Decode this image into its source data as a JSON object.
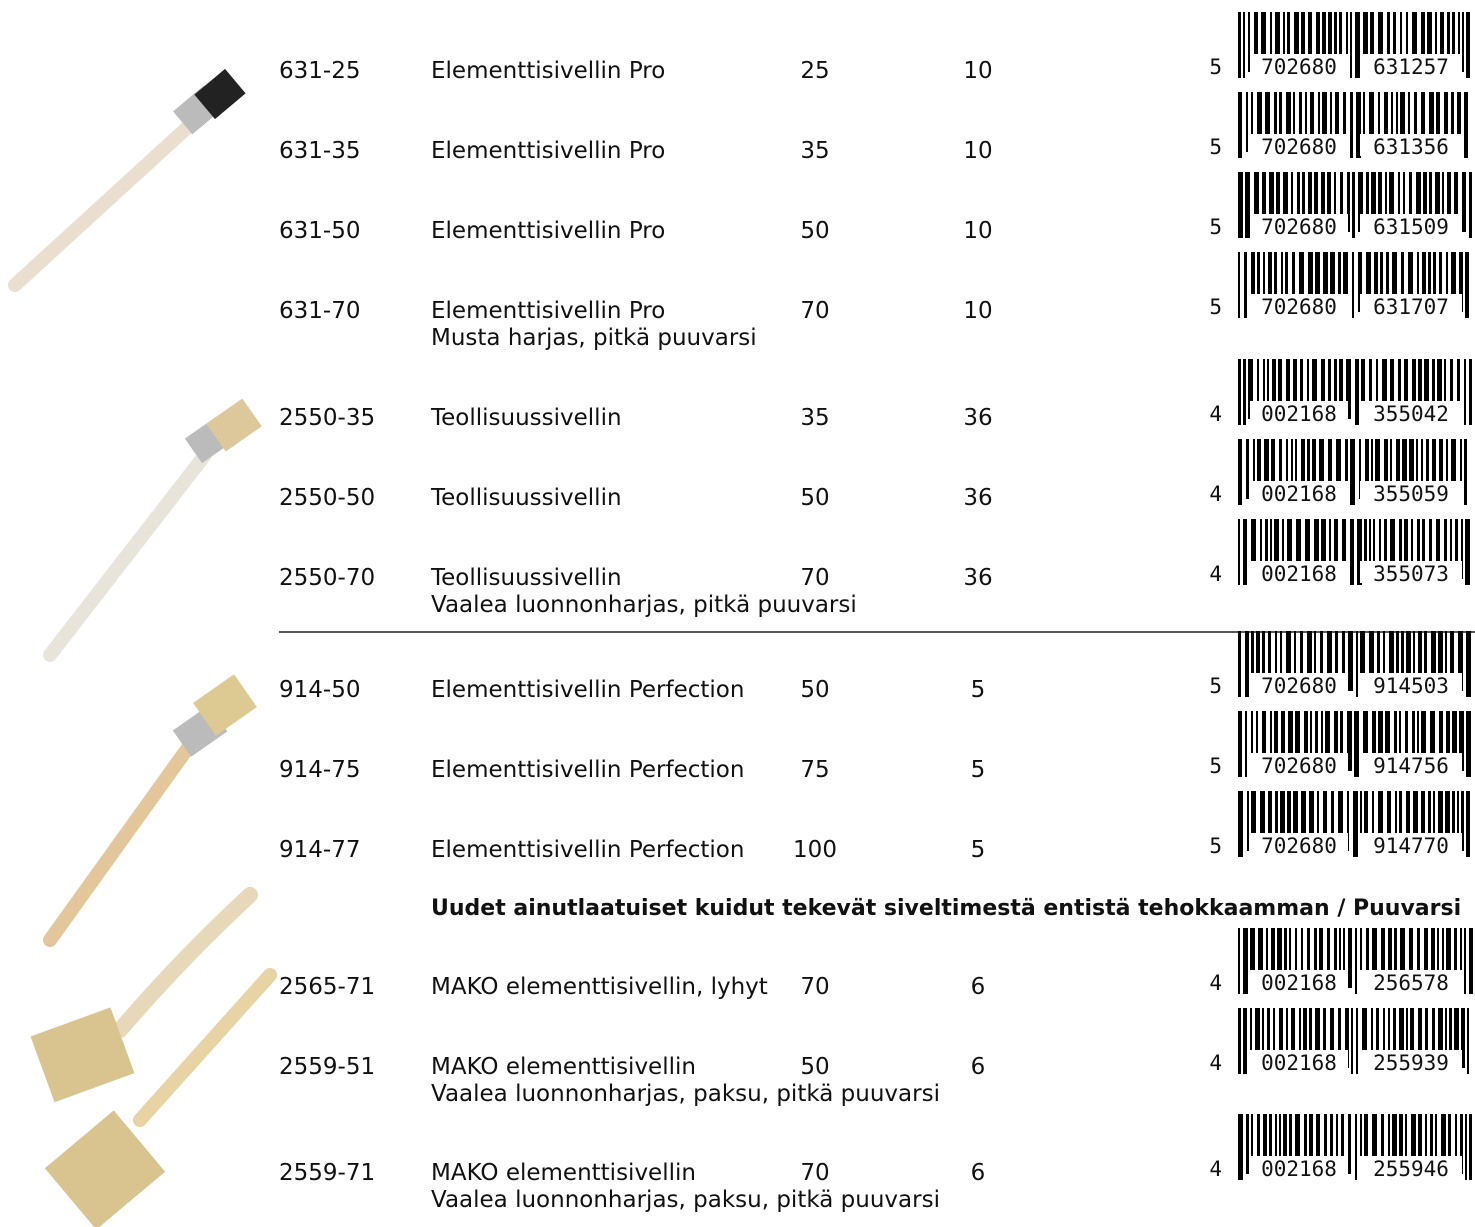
{
  "rows": [
    {
      "code": "631-25",
      "name": "Elementtisivellin Pro",
      "width": "25",
      "pack": "10",
      "barcode": [
        "5",
        "702680",
        "631257"
      ]
    },
    {
      "code": "631-35",
      "name": "Elementtisivellin Pro",
      "width": "35",
      "pack": "10",
      "barcode": [
        "5",
        "702680",
        "631356"
      ]
    },
    {
      "code": "631-50",
      "name": "Elementtisivellin Pro",
      "width": "50",
      "pack": "10",
      "barcode": [
        "5",
        "702680",
        "631509"
      ]
    },
    {
      "code": "631-70",
      "name": "Elementtisivellin Pro",
      "note": "Musta harjas, pitkä puuvarsi",
      "width": "70",
      "pack": "10",
      "barcode": [
        "5",
        "702680",
        "631707"
      ]
    },
    {
      "code": "2550-35",
      "name": "Teollisuussivellin",
      "width": "35",
      "pack": "36",
      "barcode": [
        "4",
        "002168",
        "355042"
      ]
    },
    {
      "code": "2550-50",
      "name": "Teollisuussivellin",
      "width": "50",
      "pack": "36",
      "barcode": [
        "4",
        "002168",
        "355059"
      ]
    },
    {
      "code": "2550-70",
      "name": "Teollisuussivellin",
      "note": "Vaalea luonnonharjas, pitkä puuvarsi",
      "width": "70",
      "pack": "36",
      "barcode": [
        "4",
        "002168",
        "355073"
      ]
    },
    {
      "code": "914-50",
      "name": "Elementtisivellin Perfection",
      "width": "50",
      "pack": "5",
      "barcode": [
        "5",
        "702680",
        "914503"
      ]
    },
    {
      "code": "914-75",
      "name": "Elementtisivellin Perfection",
      "width": "75",
      "pack": "5",
      "barcode": [
        "5",
        "702680",
        "914756"
      ]
    },
    {
      "code": "914-77",
      "name": "Elementtisivellin Perfection",
      "width": "100",
      "pack": "5",
      "barcode": [
        "5",
        "702680",
        "914770"
      ]
    },
    {
      "code": "2565-71",
      "name": "MAKO elementtisivellin, lyhyt",
      "width": "70",
      "pack": "6",
      "barcode": [
        "4",
        "002168",
        "256578"
      ]
    },
    {
      "code": "2559-51",
      "name": "MAKO elementtisivellin",
      "note": "Vaalea luonnonharjas, paksu, pitkä puuvarsi",
      "width": "50",
      "pack": "6",
      "barcode": [
        "4",
        "002168",
        "255939"
      ]
    },
    {
      "code": "2559-71",
      "name": "MAKO elementtisivellin",
      "note": "Vaalea luonnonharjas, paksu, pitkä puuvarsi",
      "width": "70",
      "pack": "6",
      "barcode": [
        "4",
        "002168",
        "255946"
      ]
    }
  ],
  "heading": "Uudet ainutlaatuiset kuidut tekevät siveltimestä entistä tehokkaamman / Puuvarsi"
}
